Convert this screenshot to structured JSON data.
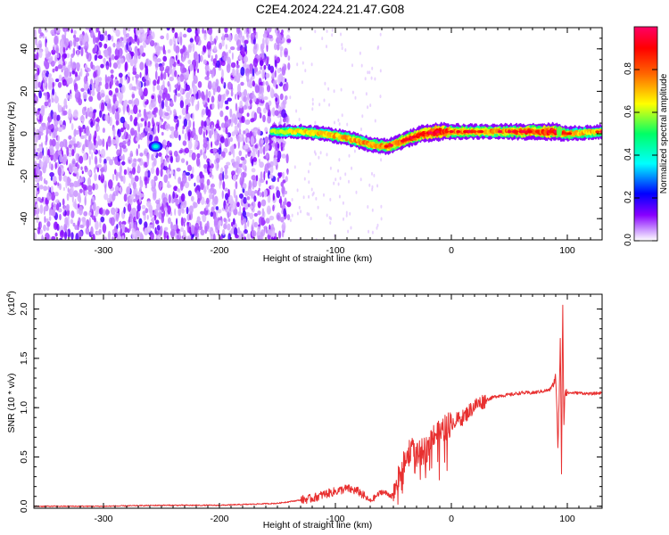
{
  "title": "C2E4.2024.224.21.47.G08",
  "chart_data": [
    {
      "type": "heatmap",
      "title": "C2E4.2024.224.21.47.G08",
      "xlabel": "Height of straight line (km)",
      "ylabel": "Frequency (Hz)",
      "xlim": [
        -360,
        130
      ],
      "ylim": [
        -50,
        50
      ],
      "x_ticks": [
        -300,
        -200,
        -100,
        0,
        100
      ],
      "x_tick_labels": [
        "-300",
        "-200",
        "-100",
        "0",
        "100"
      ],
      "y_ticks": [
        -40,
        -20,
        0,
        20,
        40
      ],
      "y_tick_labels": [
        "-40",
        "-20",
        "0",
        "20",
        "40"
      ],
      "grid": false,
      "colorbar": {
        "label": "Normalized spectral amplitude",
        "range": [
          0,
          1
        ],
        "ticks": [
          0.0,
          0.2,
          0.4,
          0.6,
          0.8
        ],
        "tick_labels": [
          "0.0",
          "0.2",
          "0.4",
          "0.6",
          "0.8"
        ],
        "colormap": [
          "#ffffff",
          "#cc99ff",
          "#8800ff",
          "#0000ff",
          "#00ffff",
          "#00ff66",
          "#ffff00",
          "#ff6600",
          "#ff0000",
          "#ff0066"
        ]
      },
      "signal_trace": {
        "description_x": [
          -155,
          -130,
          -110,
          -90,
          -70,
          -55,
          -40,
          -25,
          -10,
          0,
          30,
          60,
          90,
          100,
          130
        ],
        "center_frequency_hz": [
          1,
          1,
          0,
          -2,
          -5,
          -6,
          -3,
          0,
          1,
          1,
          1,
          1,
          1,
          0,
          1
        ],
        "peak_amplitude": [
          0.3,
          0.5,
          0.55,
          0.6,
          0.65,
          0.7,
          0.8,
          0.9,
          1.0,
          0.7,
          0.6,
          0.75,
          0.95,
          0.6,
          0.5
        ]
      },
      "noise_region_x": [
        -360,
        -140
      ]
    },
    {
      "type": "line",
      "xlabel": "Height of straight line (km)",
      "ylabel": "SNR (10 * v/v)",
      "multiplier_label": "(x10",
      "multiplier_exp": "4",
      "multiplier_close": ")",
      "xlim": [
        -360,
        130
      ],
      "ylim": [
        -0.02,
        2.15
      ],
      "x_ticks": [
        -300,
        -200,
        -100,
        0,
        100
      ],
      "x_tick_labels": [
        "-300",
        "-200",
        "-100",
        "0",
        "100"
      ],
      "y_ticks": [
        0.0,
        0.5,
        1.0,
        1.5,
        2.0
      ],
      "y_tick_labels": [
        "0.0",
        "0.5",
        "1.0",
        "1.5",
        "2.0"
      ],
      "grid": false,
      "color": "#e83030",
      "series": [
        {
          "x": [
            -360,
            -300,
            -250,
            -200,
            -150,
            -120,
            -110,
            -100,
            -90,
            -80,
            -70,
            -60,
            -50,
            -45,
            -40,
            -35,
            -30,
            -25,
            -20,
            -15,
            -10,
            -5,
            0,
            10,
            20,
            30,
            40,
            50,
            60,
            70,
            80,
            85,
            90,
            92,
            94,
            95,
            96,
            97,
            98,
            100,
            110,
            120,
            130
          ],
          "y": [
            0.0,
            0.0,
            0.01,
            0.01,
            0.03,
            0.08,
            0.12,
            0.15,
            0.18,
            0.15,
            0.05,
            0.15,
            0.1,
            0.3,
            0.45,
            0.6,
            0.5,
            0.55,
            0.6,
            0.75,
            0.72,
            0.8,
            0.85,
            0.9,
            1.02,
            1.08,
            1.12,
            1.13,
            1.15,
            1.15,
            1.17,
            1.18,
            1.3,
            0.6,
            1.7,
            0.35,
            2.15,
            0.8,
            1.2,
            1.15,
            1.15,
            1.14,
            1.15
          ]
        }
      ]
    }
  ]
}
